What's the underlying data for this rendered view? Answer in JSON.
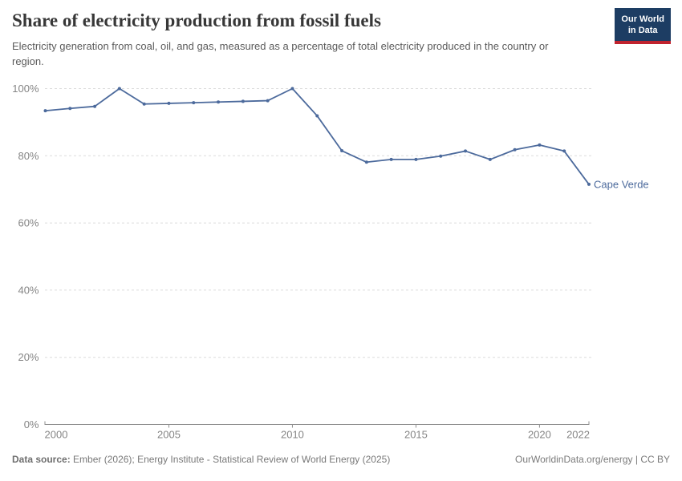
{
  "header": {
    "title": "Share of electricity production from fossil fuels",
    "subtitle": "Electricity generation from coal, oil, and gas, measured as a percentage of total electricity produced in the country or region.",
    "logo": {
      "line1": "Our World",
      "line2": "in Data"
    }
  },
  "chart_data": {
    "type": "line",
    "title": "Share of electricity production from fossil fuels",
    "xlabel": "",
    "ylabel": "",
    "xlim": [
      2000,
      2022
    ],
    "ylim": [
      0,
      100
    ],
    "x_ticks": [
      2000,
      2005,
      2010,
      2015,
      2020,
      2022
    ],
    "y_ticks": [
      0,
      20,
      40,
      60,
      80,
      100
    ],
    "y_tick_suffix": "%",
    "grid": "horizontal-dashed",
    "legend_position": "end-of-line-label",
    "series": [
      {
        "name": "Cape Verde",
        "color": "#4c6a9c",
        "x": [
          2000,
          2001,
          2002,
          2003,
          2004,
          2005,
          2006,
          2007,
          2008,
          2009,
          2010,
          2011,
          2012,
          2013,
          2014,
          2015,
          2016,
          2017,
          2018,
          2019,
          2020,
          2021,
          2022
        ],
        "values": [
          93.4,
          94.1,
          94.7,
          100,
          95.4,
          95.6,
          95.8,
          96.0,
          96.2,
          96.4,
          100,
          91.9,
          81.5,
          78.1,
          78.9,
          78.9,
          79.9,
          81.4,
          78.9,
          81.8,
          83.2,
          81.4,
          71.5
        ]
      }
    ]
  },
  "footer": {
    "data_source_label": "Data source:",
    "data_source_text": "Ember (2026); Energy Institute - Statistical Review of World Energy (2025)",
    "credit": "OurWorldinData.org/energy | CC BY"
  },
  "colors": {
    "line": "#4c6a9c",
    "grid": "#dcdcdc",
    "axis": "#8f8f8f",
    "tick_label": "#858585",
    "logo_bg": "#1d3d63",
    "logo_bar": "#c0232e"
  }
}
